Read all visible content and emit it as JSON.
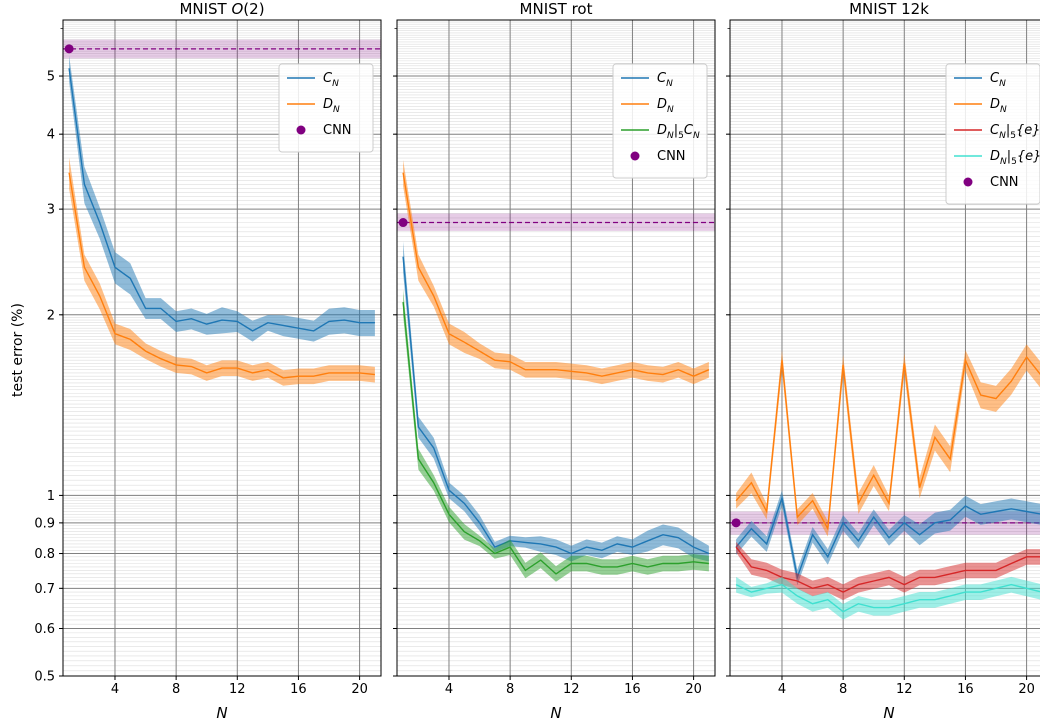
{
  "figure": {
    "ylabel": "test error (%)"
  },
  "chart_data": [
    {
      "type": "line",
      "title_main": "MNIST ",
      "title_em": "O",
      "title_tail": "(2)",
      "xlabel": "N",
      "ylabel": "test error (%)",
      "yscale": "log",
      "xlim": [
        0.6,
        21.4
      ],
      "ylim": [
        0.5,
        6.2
      ],
      "xticks": [
        4,
        8,
        12,
        16,
        20
      ],
      "yticks": [
        0.5,
        0.6,
        0.7,
        0.8,
        0.9,
        1,
        2,
        3,
        4,
        5
      ],
      "grid": true,
      "legend_position": "upper-right",
      "x": [
        1,
        2,
        3,
        4,
        5,
        6,
        7,
        8,
        9,
        10,
        11,
        12,
        13,
        14,
        15,
        16,
        17,
        18,
        19,
        20,
        21
      ],
      "series": [
        {
          "name": "C",
          "sub": "N",
          "color": "#1f77b4",
          "values": [
            5.15,
            3.3,
            2.85,
            2.4,
            2.3,
            2.05,
            2.05,
            1.95,
            1.97,
            1.93,
            1.96,
            1.95,
            1.88,
            1.94,
            1.92,
            1.9,
            1.88,
            1.95,
            1.96,
            1.94,
            1.94
          ],
          "spread": [
            0.05,
            0.07,
            0.06,
            0.06,
            0.06,
            0.04,
            0.04,
            0.04,
            0.04,
            0.04,
            0.05,
            0.04,
            0.04,
            0.03,
            0.04,
            0.04,
            0.04,
            0.05,
            0.05,
            0.05,
            0.05
          ]
        },
        {
          "name": "D",
          "sub": "N",
          "color": "#ff7f0e",
          "values": [
            3.45,
            2.4,
            2.15,
            1.86,
            1.82,
            1.74,
            1.69,
            1.65,
            1.64,
            1.6,
            1.63,
            1.63,
            1.6,
            1.62,
            1.57,
            1.58,
            1.58,
            1.6,
            1.6,
            1.6,
            1.59
          ],
          "spread": [
            0.06,
            0.05,
            0.05,
            0.04,
            0.04,
            0.03,
            0.03,
            0.03,
            0.03,
            0.03,
            0.03,
            0.03,
            0.03,
            0.03,
            0.03,
            0.03,
            0.03,
            0.03,
            0.03,
            0.03,
            0.03
          ]
        }
      ],
      "cnn": {
        "name": "CNN",
        "color": "#800080",
        "value": 5.55,
        "band": [
          5.35,
          5.75
        ]
      }
    },
    {
      "type": "line",
      "title_main": "MNIST rot",
      "title_em": "",
      "title_tail": "",
      "xlabel": "N",
      "yscale": "log",
      "xlim": [
        0.6,
        21.4
      ],
      "ylim": [
        0.5,
        6.2
      ],
      "xticks": [
        4,
        8,
        12,
        16,
        20
      ],
      "yticks": [
        0.5,
        0.6,
        0.7,
        0.8,
        0.9,
        1,
        2,
        3,
        4,
        5
      ],
      "grid": true,
      "legend_position": "upper-right",
      "x": [
        1,
        2,
        3,
        4,
        5,
        6,
        7,
        8,
        9,
        10,
        11,
        12,
        13,
        14,
        15,
        16,
        17,
        18,
        19,
        20,
        21
      ],
      "series": [
        {
          "name": "C",
          "sub": "N",
          "color": "#1f77b4",
          "values": [
            2.5,
            1.3,
            1.2,
            1.02,
            0.97,
            0.9,
            0.82,
            0.84,
            0.835,
            0.83,
            0.82,
            0.8,
            0.82,
            0.81,
            0.83,
            0.82,
            0.84,
            0.86,
            0.85,
            0.82,
            0.8
          ],
          "spread": [
            0.06,
            0.04,
            0.04,
            0.03,
            0.03,
            0.03,
            0.02,
            0.02,
            0.02,
            0.03,
            0.03,
            0.03,
            0.03,
            0.03,
            0.03,
            0.03,
            0.04,
            0.04,
            0.04,
            0.04,
            0.03
          ]
        },
        {
          "name": "D",
          "sub": "N",
          "color": "#ff7f0e",
          "values": [
            3.45,
            2.4,
            2.15,
            1.86,
            1.8,
            1.74,
            1.68,
            1.67,
            1.62,
            1.62,
            1.62,
            1.61,
            1.6,
            1.58,
            1.6,
            1.62,
            1.6,
            1.59,
            1.62,
            1.58,
            1.62
          ],
          "spread": [
            0.05,
            0.05,
            0.04,
            0.04,
            0.04,
            0.03,
            0.03,
            0.03,
            0.03,
            0.03,
            0.03,
            0.03,
            0.03,
            0.03,
            0.03,
            0.03,
            0.03,
            0.03,
            0.03,
            0.03,
            0.03
          ]
        },
        {
          "name": "D",
          "sub": "N",
          "mid": "|",
          "sub2": "5",
          "tail": "C",
          "sub3": "N",
          "color": "#2ca02c",
          "values": [
            2.1,
            1.15,
            1.05,
            0.93,
            0.87,
            0.84,
            0.8,
            0.82,
            0.75,
            0.78,
            0.74,
            0.77,
            0.77,
            0.76,
            0.76,
            0.77,
            0.76,
            0.77,
            0.77,
            0.775,
            0.77
          ],
          "spread": [
            0.05,
            0.04,
            0.03,
            0.03,
            0.03,
            0.02,
            0.02,
            0.03,
            0.03,
            0.03,
            0.03,
            0.03,
            0.03,
            0.03,
            0.03,
            0.03,
            0.03,
            0.03,
            0.03,
            0.03,
            0.03
          ]
        }
      ],
      "cnn": {
        "name": "CNN",
        "color": "#800080",
        "value": 2.85,
        "band": [
          2.76,
          2.95
        ]
      }
    },
    {
      "type": "line",
      "title_main": "MNIST 12k",
      "title_em": "",
      "title_tail": "",
      "xlabel": "N",
      "yscale": "log",
      "xlim": [
        0.6,
        21.4
      ],
      "ylim": [
        0.5,
        6.2
      ],
      "xticks": [
        4,
        8,
        12,
        16,
        20
      ],
      "yticks": [
        0.5,
        0.6,
        0.7,
        0.8,
        0.9,
        1,
        2,
        3,
        4,
        5
      ],
      "grid": true,
      "legend_position": "upper-right",
      "x": [
        1,
        2,
        3,
        4,
        5,
        6,
        7,
        8,
        9,
        10,
        11,
        12,
        13,
        14,
        15,
        16,
        17,
        18,
        19,
        20,
        21
      ],
      "series": [
        {
          "name": "C",
          "sub": "N",
          "color": "#1f77b4",
          "values": [
            0.82,
            0.88,
            0.83,
            0.99,
            0.73,
            0.86,
            0.79,
            0.9,
            0.84,
            0.92,
            0.85,
            0.9,
            0.86,
            0.9,
            0.91,
            0.96,
            0.93,
            0.94,
            0.95,
            0.94,
            0.93
          ],
          "spread": [
            0.03,
            0.03,
            0.03,
            0.03,
            0.03,
            0.03,
            0.03,
            0.03,
            0.03,
            0.03,
            0.03,
            0.03,
            0.04,
            0.04,
            0.04,
            0.04,
            0.04,
            0.04,
            0.04,
            0.04,
            0.04
          ]
        },
        {
          "name": "D",
          "sub": "N",
          "color": "#ff7f0e",
          "values": [
            0.98,
            1.05,
            0.94,
            1.68,
            0.92,
            0.98,
            0.88,
            1.65,
            0.97,
            1.08,
            0.97,
            1.66,
            1.03,
            1.25,
            1.15,
            1.68,
            1.47,
            1.45,
            1.55,
            1.7,
            1.58
          ],
          "spread": [
            0.03,
            0.04,
            0.03,
            0.04,
            0.03,
            0.03,
            0.03,
            0.04,
            0.04,
            0.04,
            0.03,
            0.04,
            0.04,
            0.05,
            0.05,
            0.04,
            0.05,
            0.05,
            0.05,
            0.05,
            0.05
          ]
        },
        {
          "name": "C",
          "sub": "N",
          "mid": "|",
          "sub2": "5",
          "set": "{e}",
          "color": "#d62728",
          "values": [
            0.82,
            0.76,
            0.75,
            0.73,
            0.72,
            0.7,
            0.71,
            0.69,
            0.71,
            0.72,
            0.73,
            0.71,
            0.73,
            0.73,
            0.74,
            0.75,
            0.75,
            0.75,
            0.77,
            0.79,
            0.79
          ],
          "spread": [
            0.02,
            0.03,
            0.03,
            0.03,
            0.03,
            0.03,
            0.03,
            0.03,
            0.03,
            0.03,
            0.03,
            0.03,
            0.03,
            0.03,
            0.03,
            0.03,
            0.03,
            0.03,
            0.03,
            0.03,
            0.03
          ]
        },
        {
          "name": "D",
          "sub": "N",
          "mid": "|",
          "sub2": "5",
          "set": "{e}",
          "color": "#40e0d0",
          "values": [
            0.71,
            0.69,
            0.7,
            0.71,
            0.68,
            0.66,
            0.67,
            0.64,
            0.66,
            0.65,
            0.65,
            0.66,
            0.67,
            0.67,
            0.68,
            0.69,
            0.69,
            0.7,
            0.71,
            0.7,
            0.69
          ],
          "spread": [
            0.03,
            0.02,
            0.02,
            0.03,
            0.03,
            0.03,
            0.03,
            0.03,
            0.03,
            0.03,
            0.03,
            0.03,
            0.03,
            0.03,
            0.03,
            0.03,
            0.03,
            0.03,
            0.03,
            0.03,
            0.03
          ]
        }
      ],
      "cnn": {
        "name": "CNN",
        "color": "#800080",
        "value": 0.9,
        "band": [
          0.86,
          0.94
        ]
      }
    }
  ]
}
